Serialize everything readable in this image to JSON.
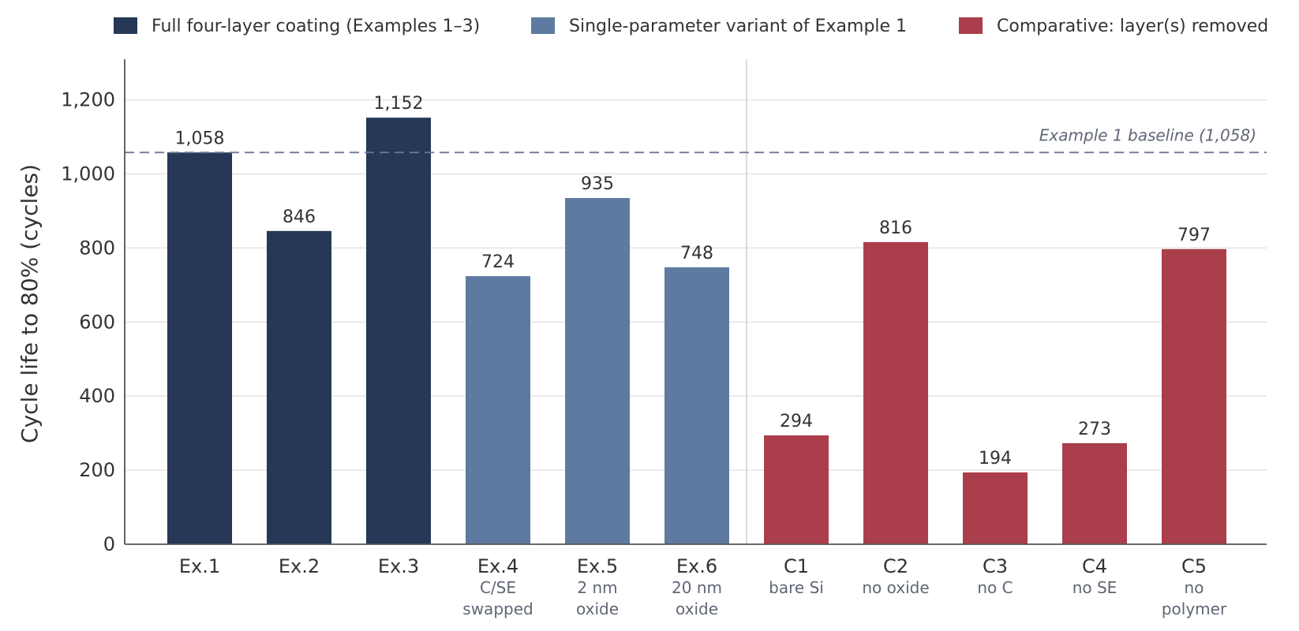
{
  "chart_data": {
    "type": "bar",
    "ylabel": "Cycle life to 80% (cycles)",
    "ylim": [
      0,
      1310
    ],
    "yticks": [
      0,
      200,
      400,
      600,
      800,
      1000,
      1200
    ],
    "ytick_labels": [
      "0",
      "200",
      "400",
      "600",
      "800",
      "1,000",
      "1,200"
    ],
    "grid": "horizontal",
    "legend": {
      "placement": "top",
      "entries": [
        {
          "label": "Full four-layer coating (Examples 1–3)",
          "color": "#263757"
        },
        {
          "label": "Single-parameter variant of Example 1",
          "color": "#5f7aa0"
        },
        {
          "label": "Comparative: layer(s) removed",
          "color": "#ab3e4b"
        }
      ]
    },
    "bars": [
      {
        "category": "Ex.1",
        "sub": [],
        "value": 1058,
        "label": "1,058",
        "group": 0
      },
      {
        "category": "Ex.2",
        "sub": [],
        "value": 846,
        "label": "846",
        "group": 0
      },
      {
        "category": "Ex.3",
        "sub": [],
        "value": 1152,
        "label": "1,152",
        "group": 0
      },
      {
        "category": "Ex.4",
        "sub": [
          "C/SE",
          "swapped"
        ],
        "value": 724,
        "label": "724",
        "group": 1
      },
      {
        "category": "Ex.5",
        "sub": [
          "2 nm",
          "oxide"
        ],
        "value": 935,
        "label": "935",
        "group": 1
      },
      {
        "category": "Ex.6",
        "sub": [
          "20 nm",
          "oxide"
        ],
        "value": 748,
        "label": "748",
        "group": 1
      },
      {
        "category": "C1",
        "sub": [
          "bare Si"
        ],
        "value": 294,
        "label": "294",
        "group": 2
      },
      {
        "category": "C2",
        "sub": [
          "no oxide"
        ],
        "value": 816,
        "label": "816",
        "group": 2
      },
      {
        "category": "C3",
        "sub": [
          "no C"
        ],
        "value": 194,
        "label": "194",
        "group": 2
      },
      {
        "category": "C4",
        "sub": [
          "no SE"
        ],
        "value": 273,
        "label": "273",
        "group": 2
      },
      {
        "category": "C5",
        "sub": [
          "no",
          "polymer"
        ],
        "value": 797,
        "label": "797",
        "group": 2
      }
    ],
    "reference_line": {
      "value": 1058,
      "label": "Example 1 baseline (1,058)",
      "color": "#6b7694",
      "style": "dashed"
    },
    "separator_after_index": 5
  }
}
